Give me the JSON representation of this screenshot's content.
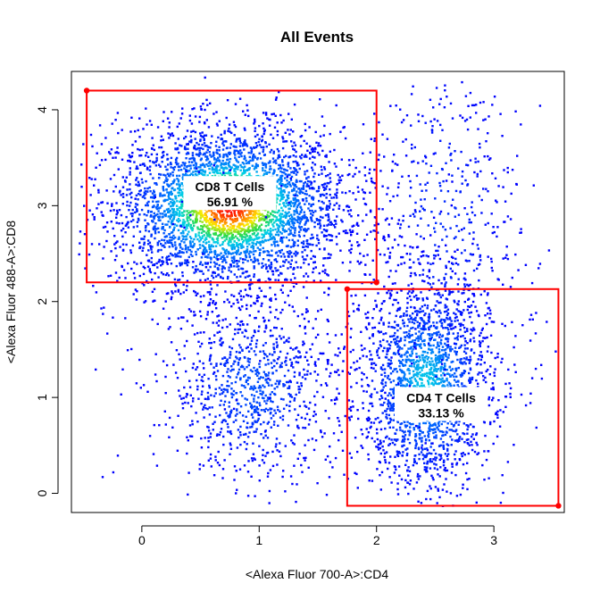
{
  "chart_data": {
    "type": "scatter",
    "title": "All Events",
    "xlabel": "<Alexa Fluor 700-A>:CD4",
    "ylabel": "<Alexa Fluor 488-A>:CD8",
    "xlim": [
      -0.6,
      3.6
    ],
    "ylim": [
      -0.2,
      4.4
    ],
    "xticks": [
      0,
      1,
      2,
      3
    ],
    "yticks": [
      0,
      1,
      2,
      3,
      4
    ],
    "grid": false,
    "colors": {
      "point_low": "#0000ff",
      "point_mid": "#00c8ff",
      "point_high": "#ff0000",
      "gate": "#ff0000"
    },
    "populations": [
      {
        "cx": 0.75,
        "cy": 2.98,
        "sx": 0.42,
        "sy": 0.36,
        "weight": 0.55
      },
      {
        "cx": 0.95,
        "cy": 1.1,
        "sx": 0.3,
        "sy": 0.4,
        "weight": 0.12
      },
      {
        "cx": 2.42,
        "cy": 1.15,
        "sx": 0.24,
        "sy": 0.48,
        "weight": 0.27
      },
      {
        "cx": 2.55,
        "cy": 2.8,
        "sx": 0.28,
        "sy": 0.85,
        "weight": 0.06
      }
    ],
    "gates": [
      {
        "name": "CD8 T Cells",
        "percent": "56.91 %",
        "x": [
          -0.47,
          2.0
        ],
        "y": [
          2.2,
          4.2
        ],
        "label_at": [
          0.75,
          3.15
        ]
      },
      {
        "name": "CD4 T Cells",
        "percent": "33.13 %",
        "x": [
          1.75,
          3.55
        ],
        "y": [
          -0.13,
          2.13
        ],
        "label_at": [
          2.55,
          0.95
        ]
      }
    ]
  }
}
